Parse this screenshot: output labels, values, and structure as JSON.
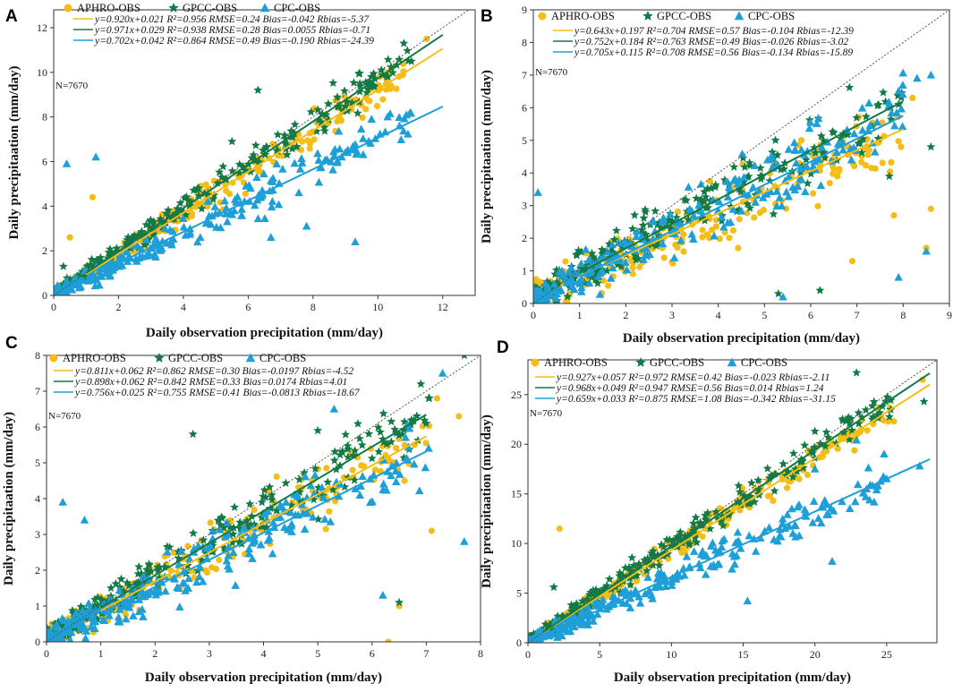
{
  "colors": {
    "aphro": "#f5bd18",
    "gpcc": "#127a45",
    "cpc": "#1e9fd8",
    "frame": "#333333",
    "diag": "#555555"
  },
  "legend": {
    "aphro": "APHRO-OBS",
    "gpcc": "GPCC-OBS",
    "cpc": "CPC-OBS"
  },
  "chart_data": [
    {
      "type": "scatter",
      "panel": "A",
      "xlabel": "Daily observation precipitation (mm/day)",
      "ylabel": "Daily precipitaation (mm/day)",
      "xlim": [
        0,
        13
      ],
      "ylim": [
        0,
        12.8
      ],
      "xticks": [
        0,
        2,
        4,
        6,
        8,
        10,
        12
      ],
      "yticks": [
        0,
        2,
        4,
        6,
        8,
        10,
        12
      ],
      "n_label": "N=7670",
      "max_obs": 12,
      "series": [
        {
          "name": "APHRO-OBS",
          "slope": 0.92,
          "intercept": 0.021,
          "fit_x": [
            1,
            12
          ],
          "equation": "y=0.920x+0.021  R²=0.956 RMSE=0.24 Bias=-0.042 Rbias=-5.37",
          "spread": 0.5,
          "outliers": [
            [
              1.2,
              4.4
            ],
            [
              0.5,
              2.6
            ],
            [
              10.4,
              9.4
            ],
            [
              11.5,
              11.5
            ]
          ]
        },
        {
          "name": "GPCC-OBS",
          "slope": 0.971,
          "intercept": 0.029,
          "fit_x": [
            1,
            12
          ],
          "equation": "y=0.971x+0.029  R²=0.938 RMSE=0.28 Bias=0.0055  Rbias=-0.71",
          "spread": 0.55,
          "outliers": [
            [
              6.3,
              9.2
            ],
            [
              10.8,
              11.3
            ],
            [
              9.8,
              9.8
            ],
            [
              0.3,
              1.3
            ],
            [
              5.5,
              6.9
            ]
          ]
        },
        {
          "name": "CPC-OBS",
          "slope": 0.702,
          "intercept": 0.042,
          "fit_x": [
            1,
            12
          ],
          "equation": "y=0.702x+0.042  R²=0.864 RMSE=0.49 Bias=-0.190 Rbias=-24.39",
          "spread": 0.6,
          "outliers": [
            [
              0.4,
              5.9
            ],
            [
              1.3,
              6.2
            ],
            [
              10.3,
              8.0
            ],
            [
              9.3,
              2.4
            ],
            [
              7.8,
              3.1
            ],
            [
              6.7,
              2.6
            ]
          ]
        }
      ]
    },
    {
      "type": "scatter",
      "panel": "B",
      "xlabel": "Daily observation precipitation (mm/day)",
      "ylabel": "Daily precipitaation (mm/day)",
      "xlim": [
        0,
        9
      ],
      "ylim": [
        0,
        9
      ],
      "xticks": [
        0,
        1,
        2,
        3,
        4,
        5,
        6,
        7,
        8,
        9
      ],
      "yticks": [
        0,
        1,
        2,
        3,
        4,
        5,
        6,
        7,
        8,
        9
      ],
      "n_label": "N=7670",
      "max_obs": 8.7,
      "series": [
        {
          "name": "APHRO-OBS",
          "slope": 0.643,
          "intercept": 0.197,
          "fit_x": [
            1,
            8
          ],
          "equation": "y=0.643x+0.197  R²=0.704 RMSE=0.57 Bias=-0.104 Rbias=-12.39",
          "spread": 0.75,
          "outliers": [
            [
              8.2,
              6.3
            ],
            [
              8.6,
              2.9
            ],
            [
              6.9,
              1.3
            ],
            [
              7.8,
              2.7
            ],
            [
              8.5,
              1.7
            ]
          ]
        },
        {
          "name": "GPCC-OBS",
          "slope": 0.752,
          "intercept": 0.184,
          "fit_x": [
            1,
            8
          ],
          "equation": "y=0.752x+0.184  R²=0.763 RMSE=0.49 Bias=-0.026 Rbias=-3.02",
          "spread": 0.75,
          "outliers": [
            [
              8.6,
              4.8
            ],
            [
              6.2,
              0.4
            ],
            [
              7.7,
              3.9
            ],
            [
              5.3,
              0.3
            ],
            [
              7.9,
              6.1
            ]
          ]
        },
        {
          "name": "CPC-OBS",
          "slope": 0.705,
          "intercept": 0.115,
          "fit_x": [
            1,
            8
          ],
          "equation": "y=0.705x+0.115  R²=0.708 RMSE=0.56 Bias=-0.134 Rbias=-15.89",
          "spread": 0.8,
          "outliers": [
            [
              8.3,
              6.9
            ],
            [
              8.6,
              7.0
            ],
            [
              6.7,
              4.7
            ],
            [
              0.1,
              3.4
            ],
            [
              7.9,
              0.8
            ],
            [
              5.4,
              0.2
            ],
            [
              8.5,
              1.6
            ]
          ]
        }
      ]
    },
    {
      "type": "scatter",
      "panel": "C",
      "xlabel": "Daily observation precipitation (mm/day)",
      "ylabel": "Daily precipitaation (mm/day)",
      "xlim": [
        0,
        8
      ],
      "ylim": [
        0,
        8
      ],
      "xticks": [
        0,
        1,
        2,
        3,
        4,
        5,
        6,
        7,
        8
      ],
      "yticks": [
        0,
        1,
        2,
        3,
        4,
        5,
        6,
        7,
        8
      ],
      "n_label": "N=7670",
      "max_obs": 7.7,
      "series": [
        {
          "name": "APHRO-OBS",
          "slope": 0.811,
          "intercept": 0.062,
          "fit_x": [
            1,
            7
          ],
          "equation": "y=0.811x+0.062  R²=0.862 RMSE=0.30 Bias=-0.0197 Rbias=-4.52",
          "spread": 0.6,
          "outliers": [
            [
              7.6,
              6.3
            ],
            [
              7.2,
              6.8
            ],
            [
              6.3,
              0.0
            ],
            [
              6.5,
              1.0
            ],
            [
              7.1,
              3.1
            ],
            [
              6.6,
              4.5
            ]
          ]
        },
        {
          "name": "GPCC-OBS",
          "slope": 0.898,
          "intercept": 0.062,
          "fit_x": [
            1,
            7
          ],
          "equation": "y=0.898x+0.062  R²=0.842 RMSE=0.33 Bias=0.0174 Rbias=4.01",
          "spread": 0.6,
          "outliers": [
            [
              7.7,
              8.0
            ],
            [
              6.5,
              1.1
            ],
            [
              5.0,
              5.9
            ],
            [
              6.9,
              7.2
            ],
            [
              2.7,
              5.8
            ]
          ]
        },
        {
          "name": "CPC-OBS",
          "slope": 0.756,
          "intercept": 0.025,
          "fit_x": [
            1,
            7
          ],
          "equation": "y=0.756x+0.025  R²=0.755 RMSE=0.41 Bias=-0.0813 Rbias=-18.67",
          "spread": 0.65,
          "outliers": [
            [
              7.7,
              2.8
            ],
            [
              0.3,
              3.9
            ],
            [
              0.7,
              3.4
            ],
            [
              5.3,
              6.5
            ],
            [
              6.2,
              1.3
            ],
            [
              7.3,
              7.5
            ]
          ]
        }
      ]
    },
    {
      "type": "scatter",
      "panel": "D",
      "xlabel": "Daily observation precipitation (mm/day)",
      "ylabel": "Daily precipitaation (mm/day)",
      "xlim": [
        0,
        28.5
      ],
      "ylim": [
        0,
        28.5
      ],
      "xticks": [
        0,
        5,
        10,
        15,
        20,
        25
      ],
      "yticks": [
        0,
        5,
        10,
        15,
        20,
        25
      ],
      "n_label": "N=7670",
      "max_obs": 27.5,
      "series": [
        {
          "name": "APHRO-OBS",
          "slope": 0.927,
          "intercept": 0.057,
          "fit_x": [
            1,
            28
          ],
          "equation": "y=0.927x+0.057  R²=0.972 RMSE=0.42 Bias=-0.023 Rbias=-2.11",
          "spread": 1.0,
          "outliers": [
            [
              2.2,
              11.5
            ],
            [
              27.5,
              26.5
            ],
            [
              25.5,
              22.3
            ],
            [
              22.8,
              20.5
            ]
          ]
        },
        {
          "name": "GPCC-OBS",
          "slope": 0.968,
          "intercept": 0.049,
          "fit_x": [
            1,
            28
          ],
          "equation": "y=0.968x+0.049  R²=0.947 RMSE=0.56 Bias=0.014 Rbias=1.24",
          "spread": 1.1,
          "outliers": [
            [
              22.9,
              27.2
            ],
            [
              27.6,
              24.3
            ],
            [
              1.8,
              5.6
            ],
            [
              20.0,
              21.3
            ]
          ]
        },
        {
          "name": "CPC-OBS",
          "slope": 0.659,
          "intercept": 0.033,
          "fit_x": [
            1,
            28
          ],
          "equation": "y=0.659x+0.033  R²=0.875 RMSE=1.08 Bias=-0.342 Rbias=-31.15",
          "spread": 1.2,
          "outliers": [
            [
              27.3,
              17.8
            ],
            [
              25.0,
              16.5
            ],
            [
              22.9,
              20.4
            ],
            [
              21.2,
              8.2
            ],
            [
              20.0,
              17.5
            ],
            [
              15.3,
              4.2
            ]
          ]
        }
      ]
    }
  ]
}
